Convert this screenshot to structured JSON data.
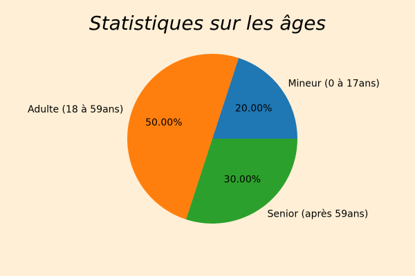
{
  "chart_data": {
    "type": "pie",
    "title": "Statistiques sur les âges",
    "categories": [
      "Mineur (0 à 17ans)",
      "Adulte (18 à 59ans)",
      "Senior (après 59ans)"
    ],
    "values": [
      20,
      50,
      30
    ],
    "value_labels": [
      "20.00%",
      "50.00%",
      "30.00%"
    ],
    "colors": [
      "#1f77b4",
      "#ff7f0e",
      "#2ca02c"
    ],
    "start_angle_deg": 0,
    "direction": "counterclockwise",
    "legend": "none"
  },
  "style": {
    "background": "#feefd6"
  }
}
